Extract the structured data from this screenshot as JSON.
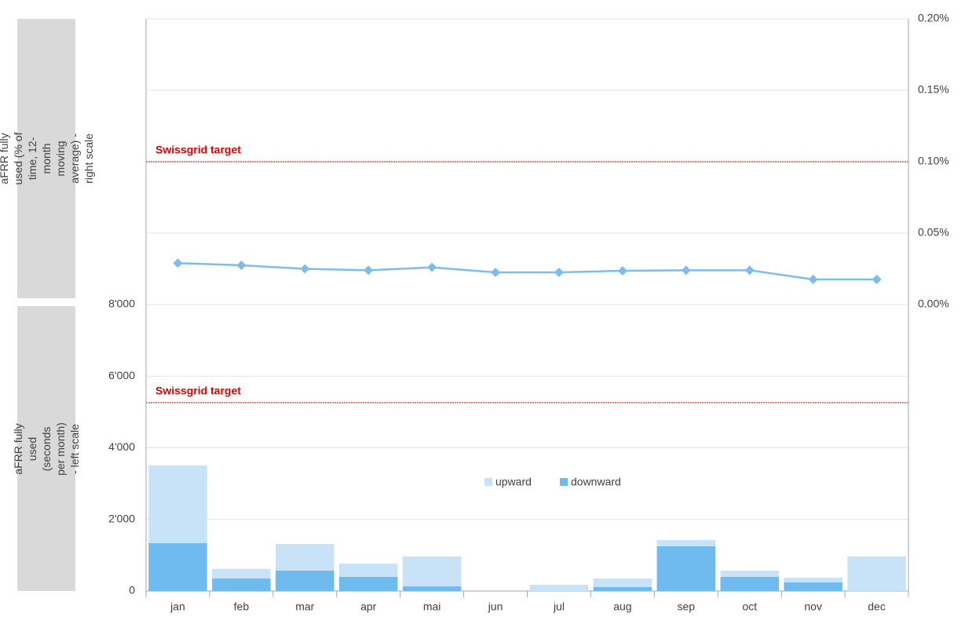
{
  "chart_data": [
    {
      "type": "line",
      "ylabel": "aFRR fully used (% of time, 12-month moving average) - right scale",
      "series": [
        {
          "name": "12-month moving average",
          "color": "#7cbcee",
          "values": [
            0.029,
            0.0275,
            0.025,
            0.024,
            0.026,
            0.0225,
            0.0225,
            0.0236,
            0.024,
            0.024,
            0.0176,
            0.0176
          ]
        }
      ],
      "ylim": [
        0,
        0.2
      ],
      "yticks": [
        {
          "value": 0,
          "label": "0.00%"
        },
        {
          "value": 0.05,
          "label": "0.05%"
        },
        {
          "value": 0.1,
          "label": "0.10%"
        },
        {
          "value": 0.15,
          "label": "0.15%"
        },
        {
          "value": 0.2,
          "label": "0.20%"
        }
      ],
      "annotations": [
        {
          "text": "Swissgrid target",
          "value": 0.1,
          "color": "#e00000"
        }
      ]
    },
    {
      "type": "stacked_bar",
      "ylabel": "aFRR fully used (seconds per month) - left scale",
      "categories": [
        "jan",
        "feb",
        "mar",
        "apr",
        "mai",
        "jun",
        "jul",
        "aug",
        "sep",
        "oct",
        "nov",
        "dec"
      ],
      "series": [
        {
          "name": "downward",
          "color": "#6fbaef",
          "values": [
            1338,
            350,
            570,
            395,
            130,
            0,
            0,
            110,
            1250,
            395,
            240,
            0
          ]
        },
        {
          "name": "upward",
          "color": "#c8e3f8",
          "values": [
            2170,
            270,
            746,
            373,
            835,
            0,
            175,
            240,
            175,
            175,
            133,
            965
          ]
        }
      ],
      "ylim": [
        0,
        8000
      ],
      "yticks": [
        0,
        {
          "value": 2000,
          "label": "2'000"
        },
        {
          "value": 4000,
          "label": "4'000"
        },
        {
          "value": 6000,
          "label": "6'000"
        },
        {
          "value": 8000,
          "label": "8'000"
        }
      ],
      "annotations": [
        {
          "text": "Swissgrid target",
          "value": 5260,
          "color": "#e00000"
        }
      ]
    }
  ]
}
